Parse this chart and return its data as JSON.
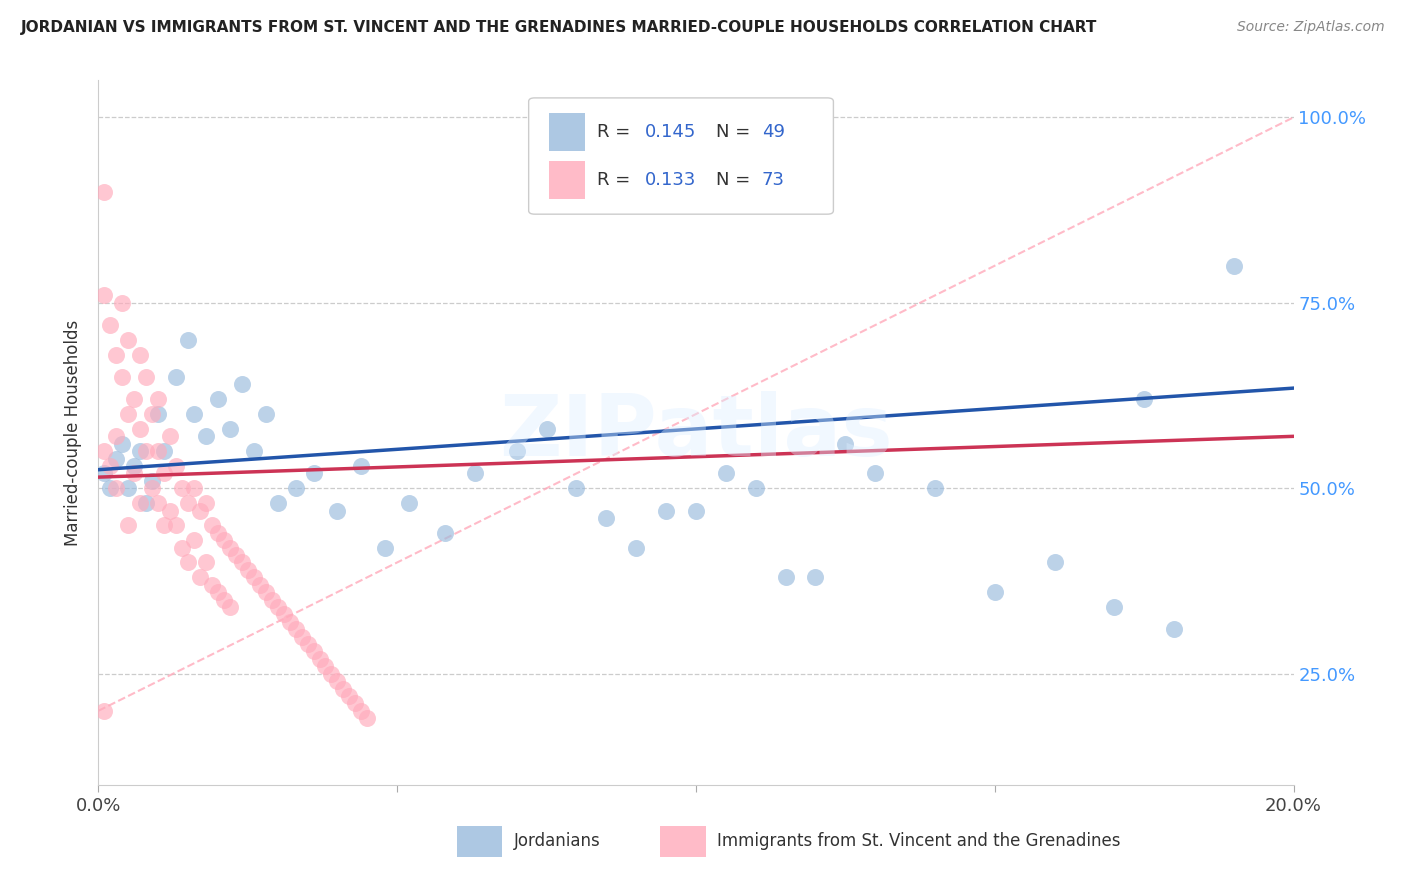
{
  "title": "JORDANIAN VS IMMIGRANTS FROM ST. VINCENT AND THE GRENADINES MARRIED-COUPLE HOUSEHOLDS CORRELATION CHART",
  "source": "Source: ZipAtlas.com",
  "ylabel": "Married-couple Households",
  "xlim": [
    0.0,
    0.2
  ],
  "ylim": [
    0.1,
    1.05
  ],
  "xticks": [
    0.0,
    0.05,
    0.1,
    0.15,
    0.2
  ],
  "xtick_labels": [
    "0.0%",
    "",
    "",
    "",
    "20.0%"
  ],
  "yticks": [
    0.25,
    0.5,
    0.75,
    1.0
  ],
  "ytick_labels": [
    "25.0%",
    "50.0%",
    "75.0%",
    "100.0%"
  ],
  "blue_color": "#99BBDD",
  "pink_color": "#FFAABB",
  "blue_line_color": "#2255AA",
  "pink_line_color": "#CC3355",
  "blue_R": 0.145,
  "blue_N": 49,
  "pink_R": 0.133,
  "pink_N": 73,
  "watermark": "ZIPatlas",
  "legend_label_blue": "Jordanians",
  "legend_label_pink": "Immigrants from St. Vincent and the Grenadines",
  "blue_scatter_x": [
    0.001,
    0.002,
    0.003,
    0.004,
    0.005,
    0.006,
    0.007,
    0.008,
    0.009,
    0.01,
    0.011,
    0.013,
    0.015,
    0.016,
    0.018,
    0.02,
    0.022,
    0.024,
    0.026,
    0.028,
    0.03,
    0.033,
    0.036,
    0.04,
    0.044,
    0.048,
    0.052,
    0.058,
    0.063,
    0.07,
    0.075,
    0.08,
    0.085,
    0.09,
    0.095,
    0.1,
    0.105,
    0.11,
    0.115,
    0.12,
    0.125,
    0.13,
    0.14,
    0.15,
    0.16,
    0.17,
    0.175,
    0.18,
    0.19
  ],
  "blue_scatter_y": [
    0.52,
    0.5,
    0.54,
    0.56,
    0.5,
    0.53,
    0.55,
    0.48,
    0.51,
    0.6,
    0.55,
    0.65,
    0.7,
    0.6,
    0.57,
    0.62,
    0.58,
    0.64,
    0.55,
    0.6,
    0.48,
    0.5,
    0.52,
    0.47,
    0.53,
    0.42,
    0.48,
    0.44,
    0.52,
    0.55,
    0.58,
    0.5,
    0.46,
    0.42,
    0.47,
    0.47,
    0.52,
    0.5,
    0.38,
    0.38,
    0.56,
    0.52,
    0.5,
    0.36,
    0.4,
    0.34,
    0.62,
    0.31,
    0.8
  ],
  "pink_scatter_x": [
    0.001,
    0.001,
    0.002,
    0.002,
    0.003,
    0.003,
    0.003,
    0.004,
    0.004,
    0.005,
    0.005,
    0.005,
    0.006,
    0.006,
    0.007,
    0.007,
    0.007,
    0.008,
    0.008,
    0.009,
    0.009,
    0.01,
    0.01,
    0.01,
    0.011,
    0.011,
    0.012,
    0.012,
    0.013,
    0.013,
    0.014,
    0.014,
    0.015,
    0.015,
    0.016,
    0.016,
    0.017,
    0.017,
    0.018,
    0.018,
    0.019,
    0.019,
    0.02,
    0.02,
    0.021,
    0.021,
    0.022,
    0.022,
    0.023,
    0.024,
    0.025,
    0.026,
    0.027,
    0.028,
    0.029,
    0.03,
    0.031,
    0.032,
    0.033,
    0.034,
    0.035,
    0.036,
    0.037,
    0.038,
    0.039,
    0.04,
    0.041,
    0.042,
    0.043,
    0.044,
    0.045,
    0.001,
    0.001
  ],
  "pink_scatter_y": [
    0.9,
    0.55,
    0.72,
    0.53,
    0.68,
    0.57,
    0.5,
    0.65,
    0.75,
    0.6,
    0.7,
    0.45,
    0.62,
    0.52,
    0.68,
    0.58,
    0.48,
    0.65,
    0.55,
    0.6,
    0.5,
    0.55,
    0.48,
    0.62,
    0.52,
    0.45,
    0.57,
    0.47,
    0.53,
    0.45,
    0.5,
    0.42,
    0.48,
    0.4,
    0.5,
    0.43,
    0.47,
    0.38,
    0.48,
    0.4,
    0.45,
    0.37,
    0.44,
    0.36,
    0.43,
    0.35,
    0.42,
    0.34,
    0.41,
    0.4,
    0.39,
    0.38,
    0.37,
    0.36,
    0.35,
    0.34,
    0.33,
    0.32,
    0.31,
    0.3,
    0.29,
    0.28,
    0.27,
    0.26,
    0.25,
    0.24,
    0.23,
    0.22,
    0.21,
    0.2,
    0.19,
    0.76,
    0.2
  ]
}
